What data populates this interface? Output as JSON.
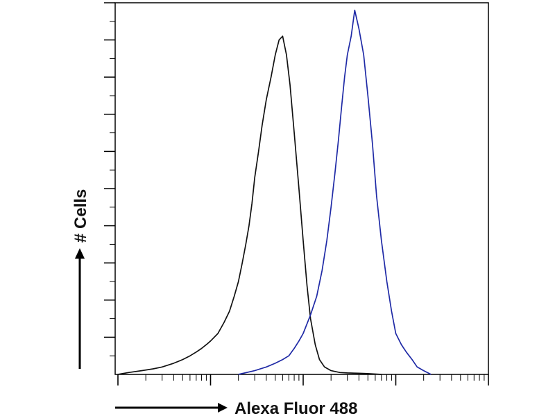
{
  "chart_data": {
    "type": "line",
    "title": "",
    "xlabel": "Alexa Fluor 488",
    "ylabel": "# Cells",
    "x_scale": "log",
    "xlim": [
      1,
      10000
    ],
    "ylim": [
      0,
      100
    ],
    "grid": false,
    "legend": "none",
    "series": [
      {
        "color": "#111111",
        "x": [
          1,
          1.3,
          1.8,
          2.4,
          3,
          4,
          5,
          6,
          7,
          8,
          9,
          10,
          12,
          14,
          16,
          18,
          20,
          22,
          24,
          26,
          28,
          30,
          33,
          36,
          40,
          45,
          50,
          55,
          60,
          66,
          72,
          80,
          90,
          100,
          110,
          120,
          135,
          150,
          170,
          200,
          250,
          300,
          400,
          500,
          600,
          700
        ],
        "y": [
          0,
          0.5,
          1,
          1.5,
          2,
          3,
          4,
          5,
          6,
          7,
          8,
          9,
          11,
          14,
          17,
          21,
          25,
          30,
          35,
          40,
          46,
          53,
          60,
          67,
          74,
          80,
          86,
          90,
          91,
          86,
          78,
          65,
          50,
          36,
          24,
          15,
          8,
          4,
          2,
          1,
          0.5,
          0.4,
          0.3,
          0.2,
          0.1,
          0
        ]
      },
      {
        "color": "#1f2aa6",
        "x": [
          20,
          30,
          40,
          50,
          60,
          70,
          80,
          90,
          100,
          120,
          140,
          160,
          180,
          200,
          220,
          240,
          260,
          280,
          300,
          330,
          360,
          400,
          450,
          500,
          560,
          620,
          700,
          800,
          900,
          1000,
          1150,
          1300,
          1500,
          1700,
          2000,
          2400
        ],
        "y": [
          0,
          1,
          2,
          3,
          4,
          5,
          7,
          9,
          11,
          16,
          21,
          28,
          36,
          45,
          54,
          63,
          72,
          80,
          86,
          91,
          98,
          93,
          86,
          75,
          62,
          48,
          36,
          25,
          17,
          11,
          8,
          6,
          4,
          2,
          1,
          0
        ]
      }
    ]
  }
}
